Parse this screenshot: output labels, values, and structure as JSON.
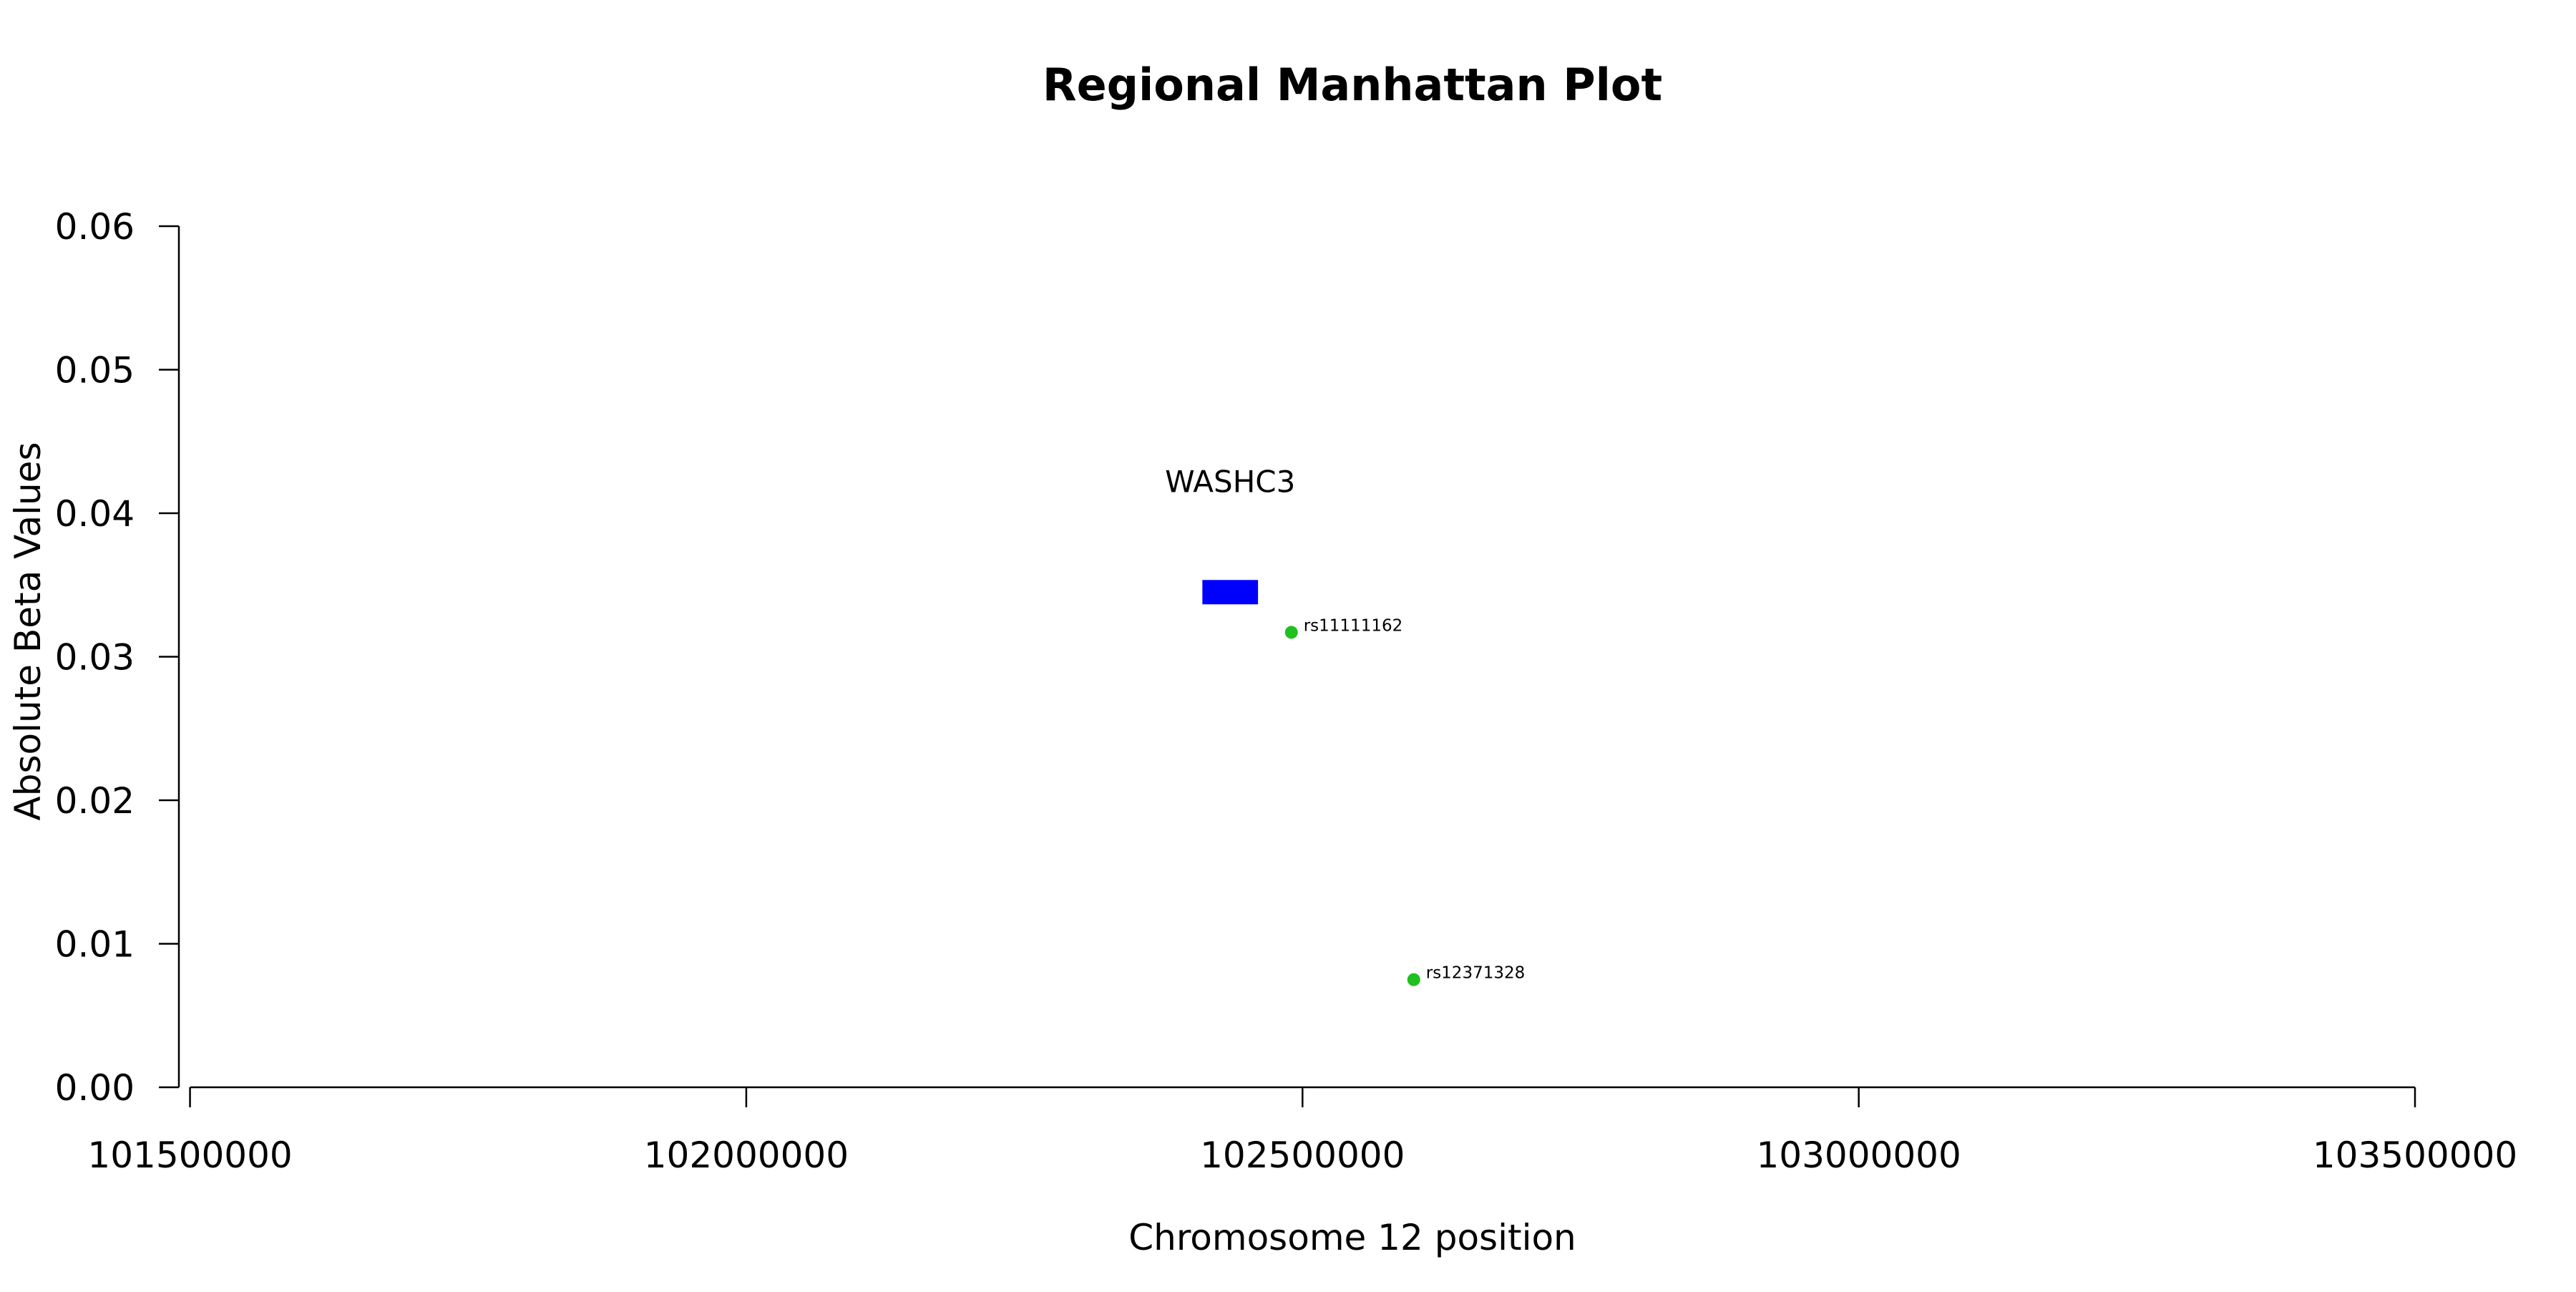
{
  "chart_data": {
    "type": "scatter",
    "title": "Regional Manhattan Plot",
    "xlabel": "Chromosome 12 position",
    "ylabel": "Absolute Beta Values",
    "xlim": [
      101490000,
      103500000
    ],
    "ylim": [
      0,
      0.06
    ],
    "x_ticks": [
      101500000,
      102000000,
      102500000,
      103000000,
      103500000
    ],
    "x_tick_labels": [
      "101500000",
      "102000000",
      "102500000",
      "103000000",
      "103500000"
    ],
    "y_ticks": [
      0,
      0.01,
      0.02,
      0.03,
      0.04,
      0.05,
      0.06
    ],
    "y_tick_labels": [
      "0.00",
      "0.01",
      "0.02",
      "0.03",
      "0.04",
      "0.05",
      "0.06"
    ],
    "grid": false,
    "points": [
      {
        "label": "rs11111162",
        "x": 102490000,
        "y": 0.0317,
        "color": "#1fc01f"
      },
      {
        "label": "rs12371328",
        "x": 102600000,
        "y": 0.0075,
        "color": "#1fc01f"
      }
    ],
    "genes": [
      {
        "name": "WASHC3",
        "start": 102410000,
        "end": 102460000,
        "y": 0.0345,
        "color": "#0000ff"
      }
    ]
  }
}
